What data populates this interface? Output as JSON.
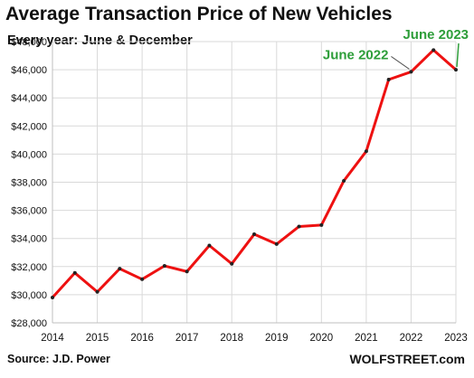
{
  "chart_data": {
    "type": "line",
    "title": "Average Transaction  Price of New Vehicles",
    "subtitle": "Every year: June & December",
    "source": "Source: J.D. Power",
    "brand": "WOLFSTREET.com",
    "ylim": [
      28000,
      48000
    ],
    "y_ticks": [
      28000,
      30000,
      32000,
      34000,
      36000,
      38000,
      40000,
      42000,
      44000,
      46000,
      48000
    ],
    "y_tick_labels": [
      "$28,000",
      "$30,000",
      "$32,000",
      "$34,000",
      "$36,000",
      "$38,000",
      "$40,000",
      "$42,000",
      "$44,000",
      "$46,000",
      "$48,000"
    ],
    "x_ticks": [
      "2014",
      "2015",
      "2016",
      "2017",
      "2018",
      "2019",
      "2020",
      "2021",
      "2022",
      "2023"
    ],
    "grid": true,
    "series": [
      {
        "color": "#ee1111",
        "points": [
          {
            "period": "June 2014",
            "value": 29800
          },
          {
            "period": "December 2014",
            "value": 31550
          },
          {
            "period": "June 2015",
            "value": 30200
          },
          {
            "period": "December 2015",
            "value": 31850
          },
          {
            "period": "June 2016",
            "value": 31100
          },
          {
            "period": "December 2016",
            "value": 32050
          },
          {
            "period": "June 2017",
            "value": 31650
          },
          {
            "period": "December 2017",
            "value": 33500
          },
          {
            "period": "June 2018",
            "value": 32200
          },
          {
            "period": "December 2018",
            "value": 34300
          },
          {
            "period": "June 2019",
            "value": 33600
          },
          {
            "period": "December 2019",
            "value": 34850
          },
          {
            "period": "June 2020",
            "value": 34950
          },
          {
            "period": "December 2020",
            "value": 38100
          },
          {
            "period": "June 2021",
            "value": 40200
          },
          {
            "period": "December 2021",
            "value": 45300
          },
          {
            "period": "June 2022",
            "value": 45850
          },
          {
            "period": "December 2022",
            "value": 47400
          },
          {
            "period": "June 2023",
            "value": 46000
          }
        ]
      }
    ],
    "annotations": [
      {
        "text": "June 2022",
        "point_index": 16,
        "color": "#2e9e3a"
      },
      {
        "text": "June 2023",
        "point_index": 18,
        "color": "#2e9e3a"
      }
    ],
    "colors": {
      "line": "#ee1111",
      "marker": "#222222",
      "grid": "#d9d9d9",
      "annotation": "#2e9e3a"
    }
  }
}
